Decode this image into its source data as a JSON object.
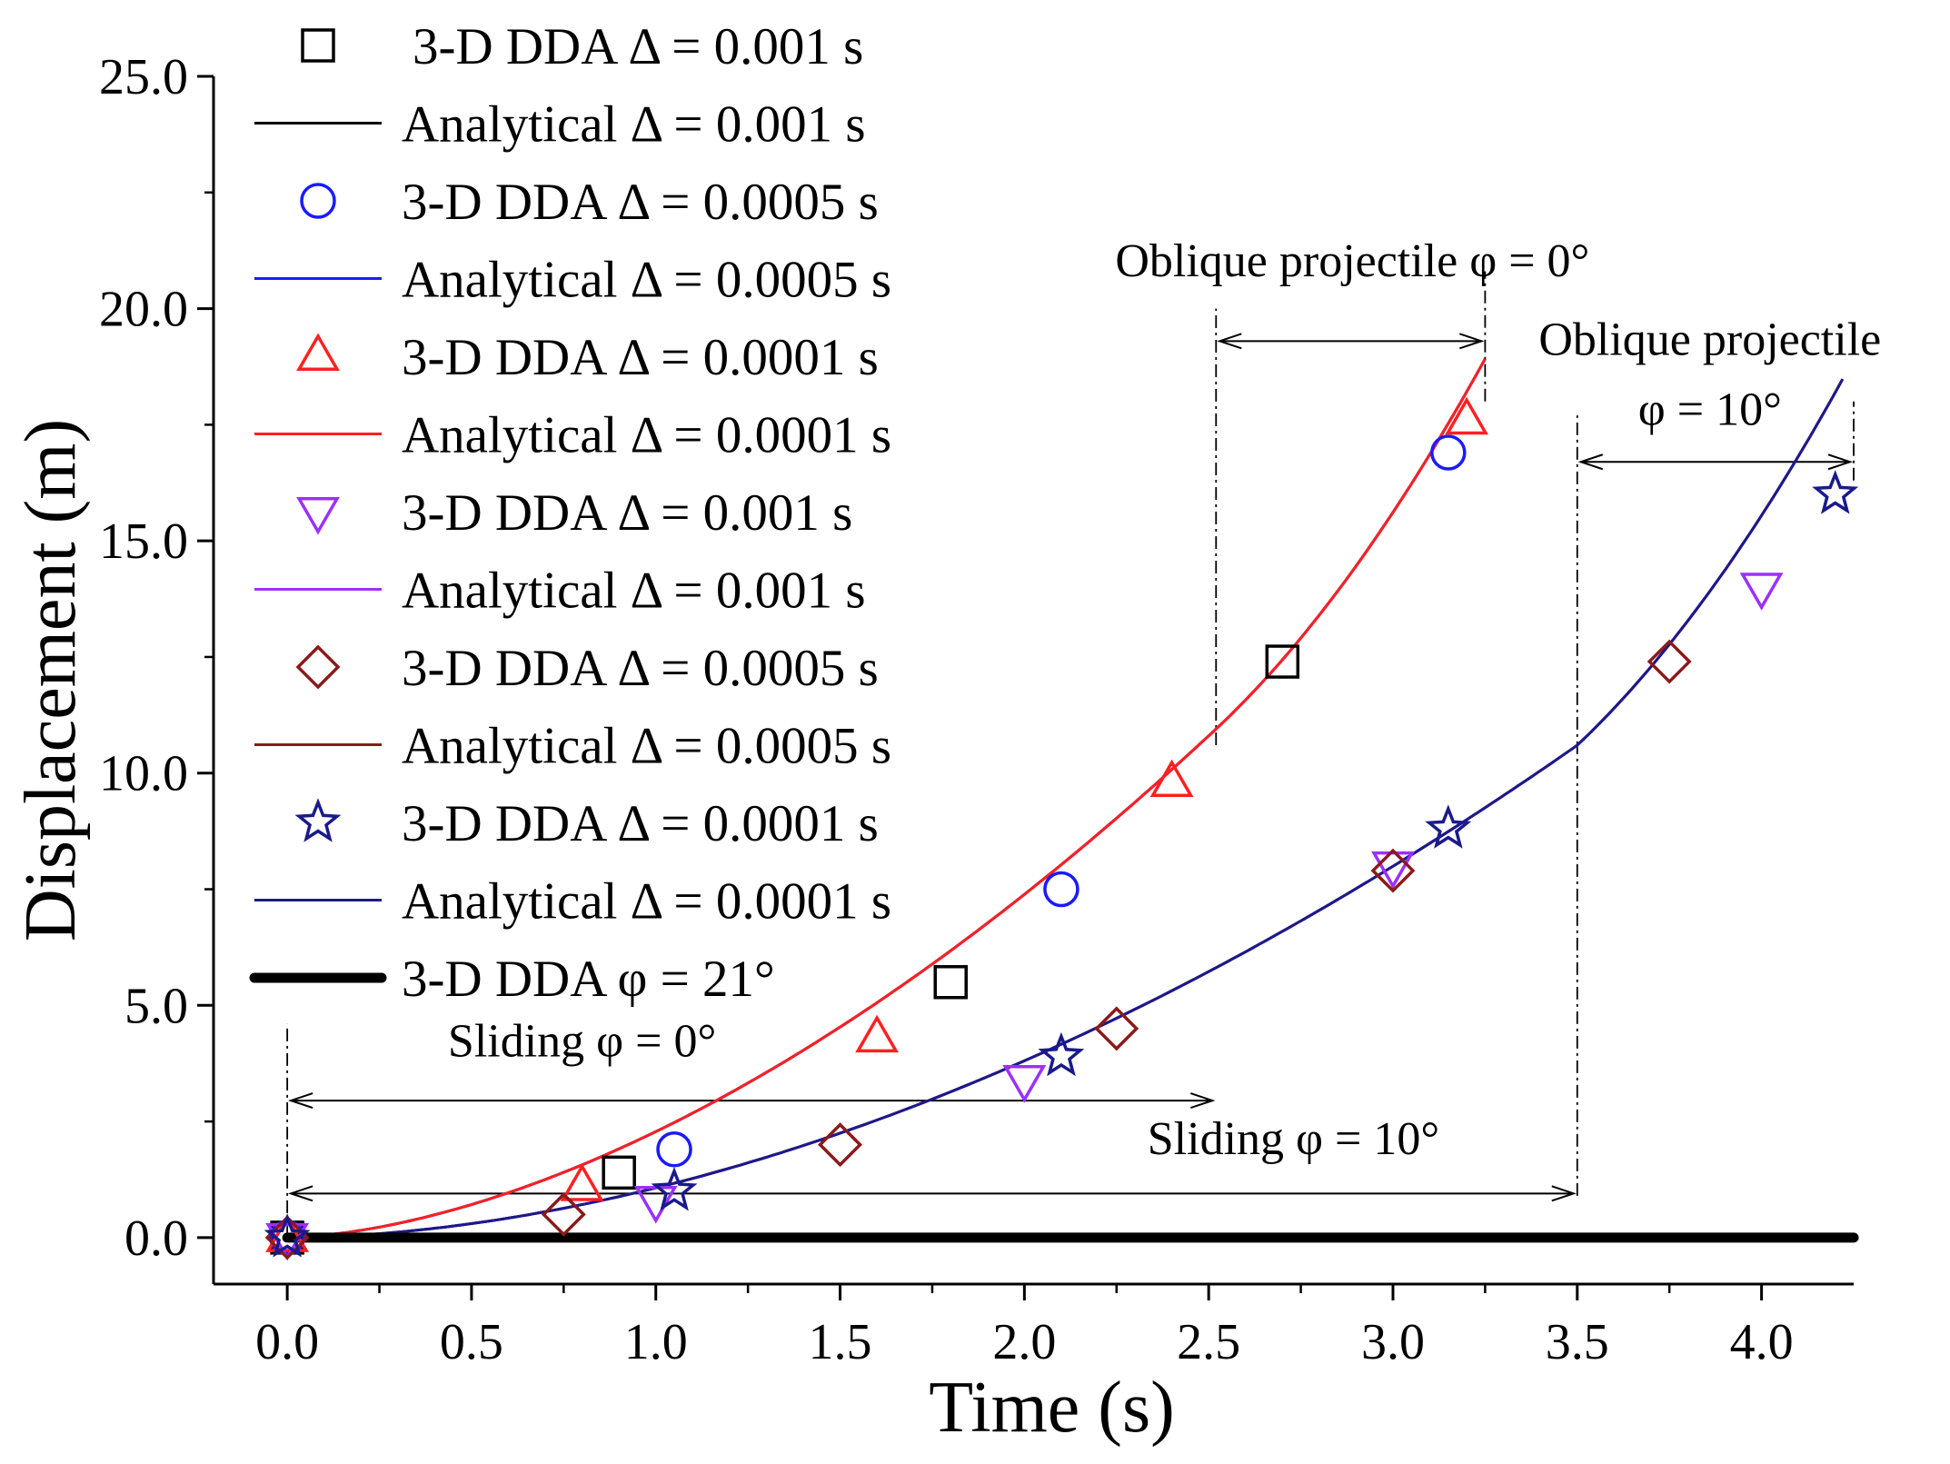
{
  "chart_data": {
    "type": "line",
    "xlabel": "Time (s)",
    "ylabel": "Displacement (m)",
    "xlim": [
      -0.2,
      4.25
    ],
    "ylim": [
      -1.0,
      25.0
    ],
    "xticks": [
      0.0,
      0.5,
      1.0,
      1.5,
      2.0,
      2.5,
      3.0,
      3.5,
      4.0
    ],
    "xtick_labels": [
      "0.0",
      "0.5",
      "1.0",
      "1.5",
      "2.0",
      "2.5",
      "3.0",
      "3.5",
      "4.0"
    ],
    "yticks": [
      0.0,
      5.0,
      10.0,
      15.0,
      20.0,
      25.0
    ],
    "ytick_labels": [
      "0.0",
      "5.0",
      "10.0",
      "15.0",
      "20.0",
      "25.0"
    ],
    "curves": {
      "phi0": {
        "slide_end": 2.52,
        "slide_base": 0.25,
        "slide_amp": 10.7,
        "slide_pow": 1.72,
        "proj_end": 3.25,
        "proj_a": 0.78,
        "proj_b": 0.95
      },
      "phi10": {
        "slide_end": 3.5,
        "slide_base": 0.0,
        "slide_amp": 10.6,
        "slide_pow": 1.83,
        "proj_end": 4.22,
        "proj_a": 0.78,
        "proj_b": 0.96
      }
    },
    "series": [
      {
        "name": "3-D DDA Δ = 0.001 s",
        "kind": "marker",
        "marker": "square",
        "color": "#000000",
        "x": [
          0.0,
          0.9,
          1.8,
          2.7
        ],
        "y": [
          0.0,
          1.4,
          5.5,
          12.4
        ]
      },
      {
        "name": "Analytical  Δ = 0.001 s",
        "kind": "line",
        "curve": "phi0",
        "color": "#000000"
      },
      {
        "name": "3-D DDA Δ = 0.0005 s",
        "kind": "marker",
        "marker": "circle",
        "color": "#1a1aff",
        "x": [
          0.0,
          1.05,
          2.1,
          3.15
        ],
        "y": [
          0.0,
          1.9,
          7.5,
          16.9
        ]
      },
      {
        "name": "Analytical  Δ = 0.0005 s",
        "kind": "line",
        "curve": "phi0",
        "color": "#1a1aff"
      },
      {
        "name": "3-D DDA Δ = 0.0001 s",
        "kind": "marker",
        "marker": "triangle-up",
        "color": "#ff2020",
        "x": [
          0.0,
          0.8,
          1.6,
          2.4,
          3.2
        ],
        "y": [
          0.0,
          1.1,
          4.3,
          9.8,
          17.6
        ]
      },
      {
        "name": "Analytical  Δ = 0.0001 s",
        "kind": "line",
        "curve": "phi0",
        "color": "#ff2020"
      },
      {
        "name": "3-D DDA Δ = 0.001 s",
        "kind": "marker",
        "marker": "triangle-down",
        "color": "#9b30ff",
        "x": [
          0.0,
          1.0,
          2.0,
          3.0,
          4.0
        ],
        "y": [
          0.0,
          0.8,
          3.4,
          8.0,
          14.0
        ]
      },
      {
        "name": "Analytical  Δ = 0.001 s",
        "kind": "line",
        "curve": "phi10",
        "color": "#9b30ff"
      },
      {
        "name": "3-D DDA Δ = 0.0005 s",
        "kind": "marker",
        "marker": "diamond",
        "color": "#8b1a1a",
        "x": [
          0.0,
          0.75,
          1.5,
          2.25,
          3.0,
          3.75
        ],
        "y": [
          0.0,
          0.5,
          2.0,
          4.5,
          7.9,
          12.4
        ]
      },
      {
        "name": "Analytical  Δ = 0.0005 s",
        "kind": "line",
        "curve": "phi10",
        "color": "#8b1a1a"
      },
      {
        "name": "3-D DDA Δ = 0.0001 s",
        "kind": "marker",
        "marker": "star",
        "color": "#1a1a8c",
        "x": [
          0.0,
          1.05,
          2.1,
          3.15,
          4.2
        ],
        "y": [
          0.0,
          1.0,
          3.9,
          8.8,
          16.0
        ]
      },
      {
        "name": "Analytical  Δ = 0.0001 s",
        "kind": "line",
        "curve": "phi10",
        "color": "#1a1a8c"
      },
      {
        "name": "3-D DDA φ = 21°",
        "kind": "flat",
        "color": "#000000",
        "x": [
          0.0,
          4.25
        ],
        "y": [
          0.0,
          0.0
        ]
      }
    ],
    "annotations": [
      {
        "text": "Sliding φ = 0°",
        "arrow_x": [
          0.0,
          2.52
        ],
        "arrow_y": 2.95,
        "label_x": 0.8,
        "label_y": 3.9
      },
      {
        "text": "Sliding φ = 10°",
        "arrow_x": [
          0.0,
          3.5
        ],
        "arrow_y": 0.95,
        "label_x": 2.73,
        "label_y": 1.8
      },
      {
        "text": "Oblique projectile φ = 0°",
        "arrow_x": [
          2.52,
          3.25
        ],
        "arrow_y": 19.3,
        "label_x": 2.89,
        "label_y": 20.7
      },
      {
        "text": "Oblique projectile",
        "arrow_x": null,
        "arrow_y": null,
        "label_x": 3.86,
        "label_y": 19.0
      },
      {
        "text": "φ = 10°",
        "arrow_x": [
          3.5,
          4.25
        ],
        "arrow_y": 16.7,
        "label_x": 3.86,
        "label_y": 17.5
      }
    ],
    "dashdot_lines": [
      {
        "x": 0.0,
        "y": [
          0.0,
          4.6
        ]
      },
      {
        "x": 2.52,
        "y": [
          10.6,
          20.0
        ]
      },
      {
        "x": 3.25,
        "y": [
          18.0,
          20.8
        ]
      },
      {
        "x": 3.5,
        "y": [
          0.9,
          17.7
        ]
      },
      {
        "x": 4.25,
        "y": [
          16.3,
          18.0
        ]
      }
    ]
  }
}
